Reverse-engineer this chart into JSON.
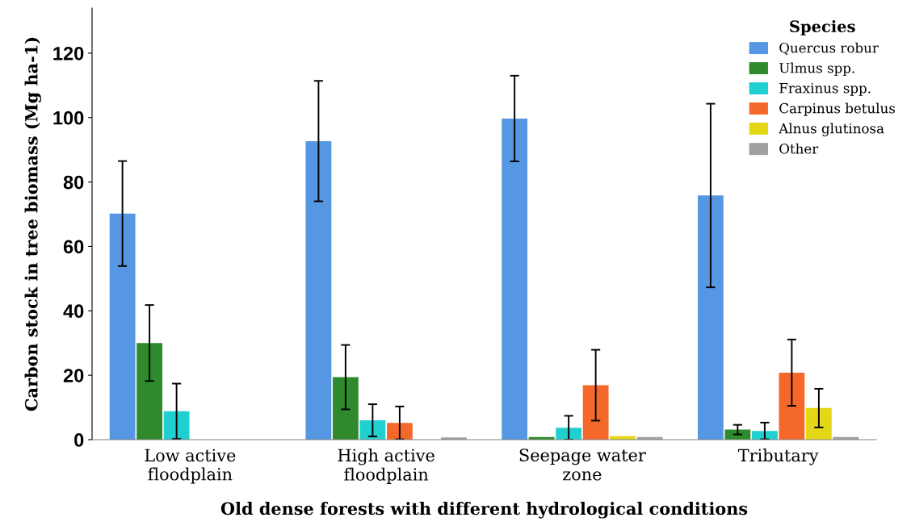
{
  "chart_data": {
    "type": "bar",
    "xlabel": "Old dense forests with different hydrological conditions",
    "ylabel": "Carbon stock in tree biomass (Mg ha-1)",
    "legend_title": "Species",
    "legend": "top right",
    "grid": false,
    "categories": [
      "Low active\nfloodplain",
      "High active\nfloodplain",
      "Seepage water\nzone",
      "Tributary"
    ],
    "ylim": [
      0,
      134
    ],
    "yticks": [
      0,
      20,
      40,
      60,
      80,
      100,
      120
    ],
    "series": [
      {
        "name": "Quercus robur",
        "color": "#5597e3",
        "values": [
          70.2,
          92.7,
          99.7,
          75.8
        ],
        "errors": [
          16.3,
          18.7,
          13.3,
          28.5
        ]
      },
      {
        "name": "Ulmus spp.",
        "color": "#2e8a2c",
        "values": [
          30.0,
          19.4,
          0.8,
          3.1
        ],
        "errors": [
          11.8,
          10.0,
          null,
          1.5
        ]
      },
      {
        "name": "Fraxinus spp.",
        "color": "#20cfcf",
        "values": [
          8.8,
          6.0,
          3.7,
          2.7
        ],
        "errors": [
          8.6,
          5.0,
          3.7,
          2.6
        ]
      },
      {
        "name": "Carpinus betulus",
        "color": "#f4692b",
        "values": [
          0,
          5.2,
          16.9,
          20.8
        ],
        "errors": [
          null,
          5.1,
          11.0,
          10.3
        ]
      },
      {
        "name": "Alnus glutinosa",
        "color": "#e3d717",
        "values": [
          0,
          0,
          1.1,
          9.8
        ],
        "errors": [
          null,
          null,
          null,
          6.0
        ]
      },
      {
        "name": "Other",
        "color": "#a0a0a0",
        "values": [
          0,
          0.7,
          0.8,
          0.8
        ]
      }
    ]
  }
}
